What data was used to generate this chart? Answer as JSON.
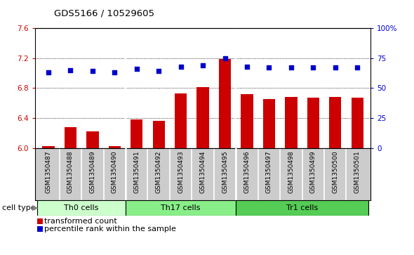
{
  "title": "GDS5166 / 10529605",
  "samples": [
    "GSM1350487",
    "GSM1350488",
    "GSM1350489",
    "GSM1350490",
    "GSM1350491",
    "GSM1350492",
    "GSM1350493",
    "GSM1350494",
    "GSM1350495",
    "GSM1350496",
    "GSM1350497",
    "GSM1350498",
    "GSM1350499",
    "GSM1350500",
    "GSM1350501"
  ],
  "transformed_count": [
    6.02,
    6.28,
    6.22,
    6.02,
    6.38,
    6.36,
    6.73,
    6.81,
    7.19,
    6.72,
    6.65,
    6.68,
    6.67,
    6.68,
    6.67
  ],
  "percentile_rank": [
    63,
    65,
    64,
    63,
    66,
    64,
    68,
    69,
    75,
    68,
    67,
    67,
    67,
    67,
    67
  ],
  "cell_types": [
    {
      "label": "Th0 cells",
      "start": 0,
      "end": 4,
      "color": "#ccffcc"
    },
    {
      "label": "Th17 cells",
      "start": 4,
      "end": 9,
      "color": "#88ee88"
    },
    {
      "label": "Tr1 cells",
      "start": 9,
      "end": 15,
      "color": "#55cc55"
    }
  ],
  "ylim_left": [
    6.0,
    7.6
  ],
  "ylim_right": [
    0,
    100
  ],
  "yticks_left": [
    6.0,
    6.4,
    6.8,
    7.2,
    7.6
  ],
  "yticks_right": [
    0,
    25,
    50,
    75,
    100
  ],
  "ytick_labels_right": [
    "0",
    "25",
    "50",
    "75",
    "100%"
  ],
  "bar_color": "#cc0000",
  "dot_color": "#0000cc",
  "plot_bg": "#ffffff",
  "tick_bg": "#cccccc",
  "legend_bar_label": "transformed count",
  "legend_dot_label": "percentile rank within the sample",
  "cell_type_label": "cell type"
}
